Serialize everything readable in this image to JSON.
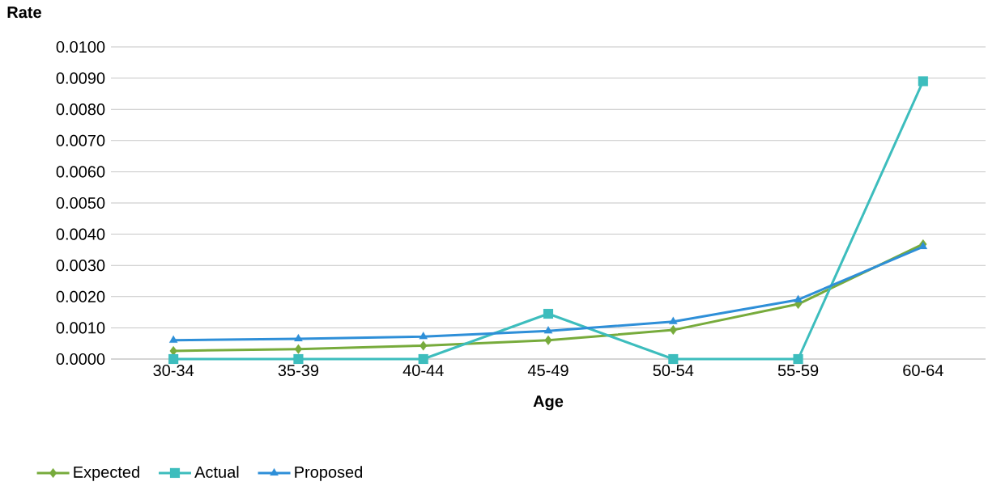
{
  "chart_data": {
    "type": "line",
    "xlabel": "Age",
    "ylabel": "Rate",
    "categories": [
      "30-34",
      "35-39",
      "40-44",
      "45-49",
      "50-54",
      "55-59",
      "60-64"
    ],
    "series": [
      {
        "name": "Expected",
        "color": "#77ab3c",
        "marker": "diamond",
        "values": [
          0.00026,
          0.00032,
          0.00043,
          0.0006,
          0.00093,
          0.00176,
          0.00368
        ]
      },
      {
        "name": "Actual",
        "color": "#3dbdbd",
        "marker": "square",
        "values": [
          0,
          0,
          0,
          0.00145,
          0,
          0,
          0.0089
        ]
      },
      {
        "name": "Proposed",
        "color": "#2e8fd8",
        "marker": "triangle",
        "values": [
          0.0006,
          0.00065,
          0.00072,
          0.0009,
          0.0012,
          0.0019,
          0.0036
        ]
      }
    ],
    "ylim": [
      0,
      0.01
    ],
    "yticks": [
      {
        "value": 0,
        "label": "0.0000"
      },
      {
        "value": 0.001,
        "label": "0.0010"
      },
      {
        "value": 0.002,
        "label": "0.0020"
      },
      {
        "value": 0.003,
        "label": "0.0030"
      },
      {
        "value": 0.004,
        "label": "0.0040"
      },
      {
        "value": 0.005,
        "label": "0.0050"
      },
      {
        "value": 0.006,
        "label": "0.0060"
      },
      {
        "value": 0.007,
        "label": "0.0070"
      },
      {
        "value": 0.008,
        "label": "0.0080"
      },
      {
        "value": 0.009,
        "label": "0.0090"
      },
      {
        "value": 0.01,
        "label": "0.0100"
      }
    ],
    "grid": "y",
    "legend": "bottom left",
    "line_style": "solid"
  }
}
